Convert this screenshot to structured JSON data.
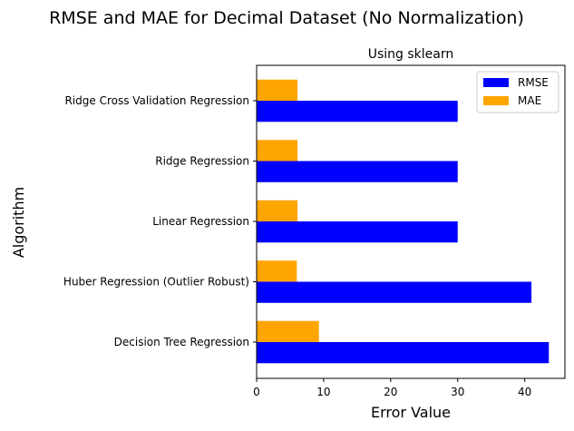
{
  "chart_data": {
    "type": "bar",
    "orientation": "horizontal",
    "title": "RMSE and MAE for Decimal Dataset (No Normalization)",
    "subtitle": "Using sklearn",
    "xlabel": "Error Value",
    "ylabel": "Algorithm",
    "xlim": [
      0,
      46
    ],
    "xticks": [
      0,
      10,
      20,
      30,
      40
    ],
    "categories": [
      "Decision Tree Regression",
      "Huber Regression (Outlier Robust)",
      "Linear Regression",
      "Ridge Regression",
      "Ridge Cross Validation Regression"
    ],
    "series": [
      {
        "name": "RMSE",
        "color": "#0000ff",
        "values": [
          43.6,
          41.0,
          30.0,
          30.0,
          30.0
        ]
      },
      {
        "name": "MAE",
        "color": "#ffa500",
        "values": [
          9.3,
          6.0,
          6.1,
          6.1,
          6.1
        ]
      }
    ],
    "legend_position": "top-right",
    "grid": false
  }
}
